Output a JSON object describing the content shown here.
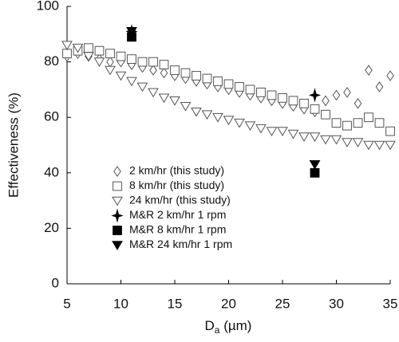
{
  "chart_data": {
    "type": "scatter",
    "ylabel": "Effectiveness (%)",
    "xlabel": [
      "D",
      "a",
      " (µm)"
    ],
    "xlim": [
      5,
      35
    ],
    "xticks": [
      5,
      10,
      15,
      20,
      25,
      30,
      35
    ],
    "ylim": [
      0,
      100
    ],
    "yticks": [
      0,
      20,
      40,
      60,
      80,
      100
    ],
    "series": [
      {
        "name": "2 km/hr (this study)",
        "marker": "diamond-open",
        "color": "#555555",
        "x": [
          5,
          6,
          7,
          8,
          9,
          10,
          11,
          12,
          13,
          14,
          15,
          16,
          17,
          18,
          19,
          20,
          21,
          22,
          23,
          24,
          25,
          26,
          27,
          28,
          29,
          30,
          31,
          32,
          33,
          34,
          35
        ],
        "values": [
          82,
          83,
          82,
          81,
          80,
          80,
          79,
          78,
          77,
          76,
          75,
          74,
          73,
          72,
          71,
          70,
          69,
          68,
          67,
          66,
          65,
          64,
          63,
          62,
          66,
          68,
          69,
          65,
          77,
          71,
          75
        ]
      },
      {
        "name": "8 km/hr (this study)",
        "marker": "square-open",
        "color": "#555555",
        "x": [
          5,
          6,
          7,
          8,
          9,
          10,
          11,
          12,
          13,
          14,
          15,
          16,
          17,
          18,
          19,
          20,
          21,
          22,
          23,
          24,
          25,
          26,
          27,
          28,
          29,
          30,
          31,
          32,
          33,
          34,
          35
        ],
        "values": [
          83,
          84,
          85,
          84,
          83,
          82,
          81,
          80,
          80,
          79,
          77,
          76,
          75,
          74,
          73,
          72,
          71,
          70,
          69,
          68,
          67,
          66,
          65,
          63,
          61,
          58,
          57,
          58,
          60,
          58,
          55
        ]
      },
      {
        "name": "24 km/hr (this study)",
        "marker": "triangle-open",
        "color": "#555555",
        "x": [
          5,
          6,
          7,
          8,
          9,
          10,
          11,
          12,
          13,
          14,
          15,
          16,
          17,
          18,
          19,
          20,
          21,
          22,
          23,
          24,
          25,
          26,
          27,
          28,
          29,
          30,
          31,
          32,
          33,
          34,
          35
        ],
        "values": [
          86,
          85,
          82,
          80,
          77,
          75,
          73,
          71,
          69,
          67,
          66,
          64,
          62,
          61,
          60,
          59,
          58,
          57,
          56,
          55,
          55,
          54,
          53,
          53,
          52,
          52,
          51,
          51,
          50,
          50,
          50
        ]
      },
      {
        "name": "M&R 2 km/hr 1 rpm",
        "marker": "star-filled",
        "color": "#000000",
        "x": [
          11,
          28
        ],
        "values": [
          91,
          68
        ]
      },
      {
        "name": "M&R 8 km/hr 1 rpm",
        "marker": "square-filled",
        "color": "#000000",
        "x": [
          11,
          28
        ],
        "values": [
          89,
          40
        ]
      },
      {
        "name": "M&R 24 km/hr 1 rpm",
        "marker": "triangle-filled",
        "color": "#000000",
        "x": [
          11,
          28
        ],
        "values": [
          91,
          43
        ]
      }
    ]
  }
}
